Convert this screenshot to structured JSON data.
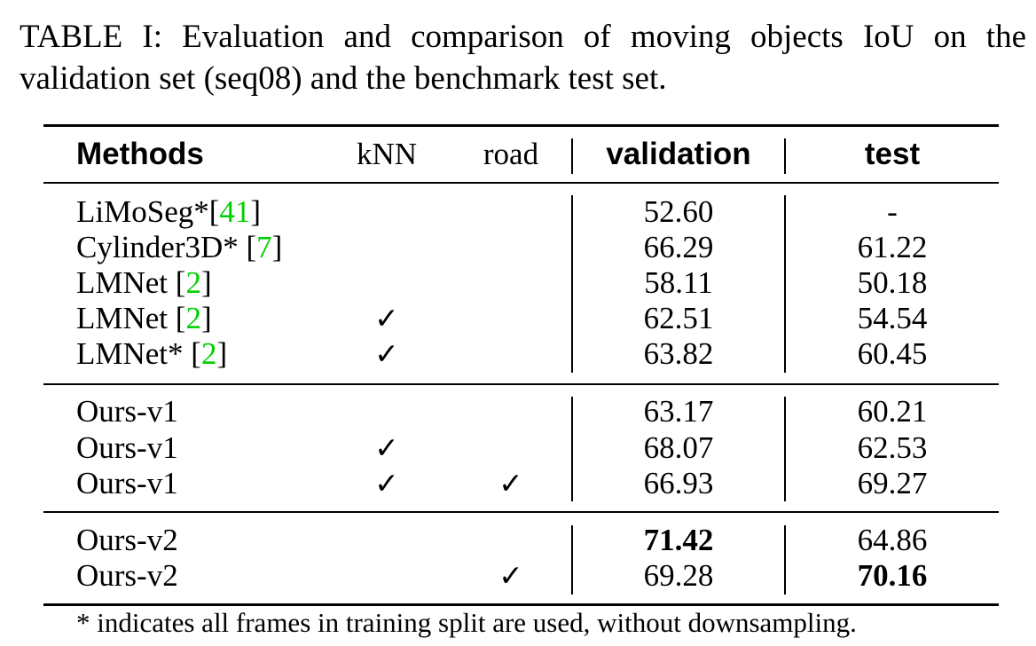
{
  "caption": "TABLE I: Evaluation and comparison of moving objects IoU on the validation set (seq08) and the benchmark test set.",
  "headers": {
    "methods": "Methods",
    "knn": "kNN",
    "road": "road",
    "validation": "validation",
    "test": "test"
  },
  "check_glyph": "✓",
  "rows": [
    {
      "method": "LiMoSeg*",
      "cite": "41",
      "cite_prefix": "[",
      "cite_suffix": "]",
      "knn": "",
      "road": "",
      "validation": "52.60",
      "test": "-"
    },
    {
      "method": "Cylinder3D* ",
      "cite": "7",
      "cite_prefix": "[",
      "cite_suffix": "]",
      "knn": "",
      "road": "",
      "validation": "66.29",
      "test": "61.22"
    },
    {
      "method": "LMNet ",
      "cite": "2",
      "cite_prefix": "[",
      "cite_suffix": "]",
      "knn": "",
      "road": "",
      "validation": "58.11",
      "test": "50.18"
    },
    {
      "method": "LMNet ",
      "cite": "2",
      "cite_prefix": "[",
      "cite_suffix": "]",
      "knn": "✓",
      "road": "",
      "validation": "62.51",
      "test": "54.54"
    },
    {
      "method": "LMNet* ",
      "cite": "2",
      "cite_prefix": "[",
      "cite_suffix": "]",
      "knn": "✓",
      "road": "",
      "validation": "63.82",
      "test": "60.45"
    },
    {
      "method": "Ours-v1",
      "cite": "",
      "cite_prefix": "",
      "cite_suffix": "",
      "knn": "",
      "road": "",
      "validation": "63.17",
      "test": "60.21"
    },
    {
      "method": "Ours-v1",
      "cite": "",
      "cite_prefix": "",
      "cite_suffix": "",
      "knn": "✓",
      "road": "",
      "validation": "68.07",
      "test": "62.53"
    },
    {
      "method": "Ours-v1",
      "cite": "",
      "cite_prefix": "",
      "cite_suffix": "",
      "knn": "✓",
      "road": "✓",
      "validation": "66.93",
      "test": "69.27"
    },
    {
      "method": "Ours-v2",
      "cite": "",
      "cite_prefix": "",
      "cite_suffix": "",
      "knn": "",
      "road": "",
      "validation": "71.42",
      "test": "64.86"
    },
    {
      "method": "Ours-v2",
      "cite": "",
      "cite_prefix": "",
      "cite_suffix": "",
      "knn": "",
      "road": "✓",
      "validation": "69.28",
      "test": "70.16"
    }
  ],
  "bold_cells": [
    "row-8-validation",
    "row-9-test"
  ],
  "citation_color": "#00d000",
  "footnote": "*  indicates all frames in training split are used, without downsampling."
}
